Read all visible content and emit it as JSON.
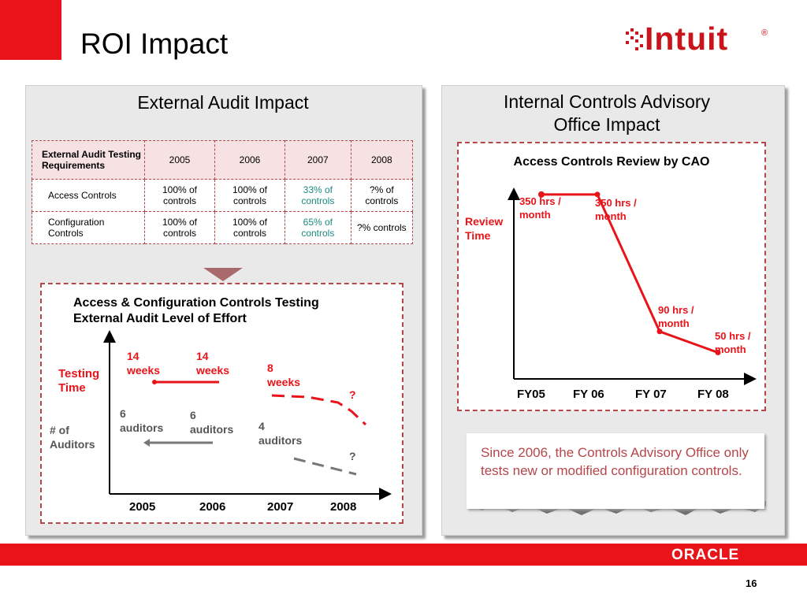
{
  "slide": {
    "title": "ROI Impact",
    "page_number": "16",
    "brand": "Intuit",
    "footer_brand": "ORACLE",
    "accent_color": "#e8141a"
  },
  "left_panel": {
    "heading": "External Audit Impact",
    "table": {
      "header": [
        "External Audit Testing Requirements",
        "2005",
        "2006",
        "2007",
        "2008"
      ],
      "rows": [
        {
          "label": "Access Controls",
          "c2005": "100% of controls",
          "c2006": "100% of controls",
          "c2007": "33% of controls",
          "c2008": "?% of controls"
        },
        {
          "label": "Configuration Controls",
          "c2005": "100% of controls",
          "c2006": "100% of controls",
          "c2007": "65% of controls",
          "c2008": "?% controls"
        }
      ]
    },
    "chart": {
      "title_line1": "Access & Configuration Controls Testing",
      "title_line2": "External Audit Level of Effort",
      "testing_time_label": [
        "Testing",
        "Time"
      ],
      "auditors_label": [
        "# of",
        "Auditors"
      ],
      "annotations": {
        "w2005": [
          "14",
          "weeks"
        ],
        "w2006": [
          "14",
          "weeks"
        ],
        "w2007": [
          "8",
          "weeks"
        ],
        "a2005": [
          "6",
          "auditors"
        ],
        "a2006": [
          "6",
          "auditors"
        ],
        "a2007": [
          "4",
          "auditors"
        ],
        "q1": "?",
        "q2": "?"
      },
      "x_ticks": [
        "2005",
        "2006",
        "2007",
        "2008"
      ]
    }
  },
  "right_panel": {
    "heading_line1": "Internal Controls Advisory",
    "heading_line2": "Office Impact",
    "chart": {
      "title": "Access Controls Review by CAO",
      "ylabel": [
        "Review",
        "Time"
      ],
      "x_ticks": [
        "FY05",
        "FY 06",
        "FY 07",
        "FY 08"
      ],
      "points": [
        {
          "x": "FY05",
          "hours": 350,
          "label": [
            "350 hrs /",
            "month"
          ]
        },
        {
          "x": "FY 06",
          "hours": 350,
          "label": [
            "350 hrs /",
            "month"
          ]
        },
        {
          "x": "FY 07",
          "hours": 90,
          "label": [
            "90 hrs /",
            "month"
          ]
        },
        {
          "x": "FY 08",
          "hours": 50,
          "label": [
            "50 hrs /",
            "month"
          ]
        }
      ]
    },
    "note": "Since 2006, the Controls Advisory Office only tests new or modified configuration controls."
  },
  "chart_data": {
    "type": "line",
    "title": "Access Controls Review by CAO",
    "xlabel": "",
    "ylabel": "Review Time",
    "categories": [
      "FY05",
      "FY 06",
      "FY 07",
      "FY 08"
    ],
    "series": [
      {
        "name": "",
        "values": [
          350,
          350,
          90,
          50
        ]
      }
    ],
    "ylim": [
      0,
      420
    ],
    "grid": false
  }
}
